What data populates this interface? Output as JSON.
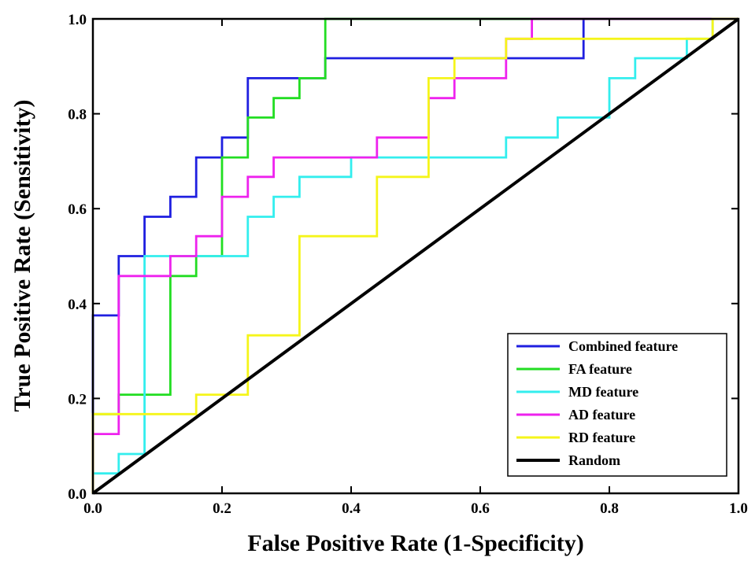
{
  "chart_data": {
    "type": "line",
    "xlabel": "False Positive Rate (1-Specificity)",
    "ylabel": "True Positive Rate (Sensitivity)",
    "xlim": [
      0,
      1
    ],
    "ylim": [
      0,
      1
    ],
    "xticks": [
      "0.0",
      "0.2",
      "0.4",
      "0.6",
      "0.8",
      "1.0"
    ],
    "yticks": [
      "0.0",
      "0.2",
      "0.4",
      "0.6",
      "0.8",
      "1.0"
    ],
    "grid": false,
    "legend_position": "bottom-right",
    "series": [
      {
        "name": "Combined feature",
        "color": "#1f1fe0",
        "x": [
          0,
          0,
          0.04,
          0.04,
          0.08,
          0.08,
          0.12,
          0.12,
          0.16,
          0.16,
          0.2,
          0.2,
          0.24,
          0.24,
          0.32,
          0.32,
          0.36,
          0.36,
          0.76,
          0.76,
          1.0
        ],
        "y": [
          0,
          0.375,
          0.375,
          0.5,
          0.5,
          0.583,
          0.583,
          0.625,
          0.625,
          0.708,
          0.708,
          0.75,
          0.75,
          0.875,
          0.875,
          0.875,
          0.875,
          0.917,
          0.917,
          1.0,
          1.0
        ]
      },
      {
        "name": "FA feature",
        "color": "#22dd22",
        "x": [
          0,
          0.04,
          0.04,
          0.12,
          0.12,
          0.16,
          0.16,
          0.2,
          0.2,
          0.24,
          0.24,
          0.28,
          0.28,
          0.32,
          0.32,
          0.36,
          0.36,
          1.0
        ],
        "y": [
          0.167,
          0.167,
          0.208,
          0.208,
          0.458,
          0.458,
          0.5,
          0.5,
          0.708,
          0.708,
          0.792,
          0.792,
          0.833,
          0.833,
          0.875,
          0.875,
          1.0,
          1.0
        ]
      },
      {
        "name": "MD feature",
        "color": "#33eeee",
        "x": [
          0,
          0,
          0.04,
          0.04,
          0.08,
          0.08,
          0.24,
          0.24,
          0.28,
          0.28,
          0.32,
          0.32,
          0.4,
          0.4,
          0.64,
          0.64,
          0.72,
          0.72,
          0.8,
          0.8,
          0.84,
          0.84,
          0.92,
          0.92,
          0.96,
          0.96,
          1.0
        ],
        "y": [
          0,
          0.042,
          0.042,
          0.083,
          0.083,
          0.5,
          0.5,
          0.583,
          0.583,
          0.625,
          0.625,
          0.667,
          0.667,
          0.708,
          0.708,
          0.75,
          0.75,
          0.792,
          0.792,
          0.875,
          0.875,
          0.917,
          0.917,
          0.958,
          0.958,
          1.0,
          1.0
        ]
      },
      {
        "name": "AD feature",
        "color": "#ee22ee",
        "x": [
          0,
          0,
          0.04,
          0.04,
          0.12,
          0.12,
          0.16,
          0.16,
          0.2,
          0.2,
          0.24,
          0.24,
          0.28,
          0.28,
          0.44,
          0.44,
          0.52,
          0.52,
          0.56,
          0.56,
          0.64,
          0.64,
          0.68,
          0.68,
          1.0
        ],
        "y": [
          0,
          0.125,
          0.125,
          0.458,
          0.458,
          0.5,
          0.5,
          0.542,
          0.542,
          0.625,
          0.625,
          0.667,
          0.667,
          0.708,
          0.708,
          0.75,
          0.75,
          0.833,
          0.833,
          0.875,
          0.875,
          0.958,
          0.958,
          1.0,
          1.0
        ]
      },
      {
        "name": "RD feature",
        "color": "#f5f51a",
        "x": [
          0,
          0,
          0.16,
          0.16,
          0.24,
          0.24,
          0.32,
          0.32,
          0.44,
          0.44,
          0.52,
          0.52,
          0.56,
          0.56,
          0.64,
          0.64,
          0.96,
          0.96,
          1.0
        ],
        "y": [
          0,
          0.167,
          0.167,
          0.208,
          0.208,
          0.333,
          0.333,
          0.542,
          0.542,
          0.667,
          0.667,
          0.875,
          0.875,
          0.917,
          0.917,
          0.958,
          0.958,
          1.0,
          1.0
        ]
      },
      {
        "name": "Random",
        "color": "#000000",
        "x": [
          0,
          1
        ],
        "y": [
          0,
          1
        ]
      }
    ]
  }
}
